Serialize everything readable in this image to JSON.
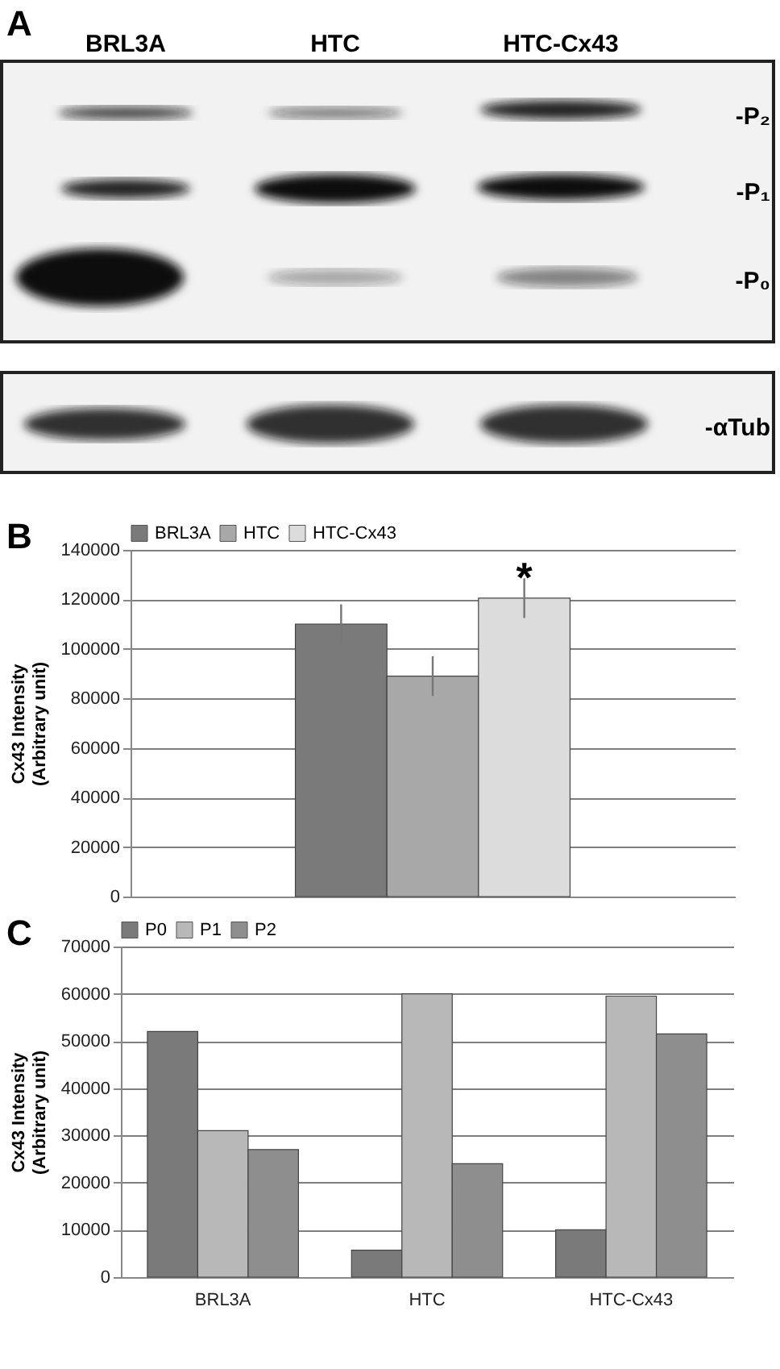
{
  "chart_data": [
    {
      "type": "other",
      "categories": [
        "BRL3A",
        "HTC",
        "HTC-Cx43"
      ],
      "annotations": [
        "A",
        "-P₂",
        "-P₁",
        "-P₀",
        "-αTub"
      ]
    },
    {
      "type": "bar",
      "ylabel": "Cx43 Intensity\n(Arbitrary unit)",
      "categories": [
        null
      ],
      "series": [
        {
          "name": "BRL3A",
          "color": "#7a7a7a",
          "values": [
            110000
          ],
          "errors": [
            8000
          ]
        },
        {
          "name": "HTC",
          "color": "#a8a8a8",
          "values": [
            89000
          ],
          "errors": [
            8000
          ]
        },
        {
          "name": "HTC-Cx43",
          "color": "#dcdcdc",
          "values": [
            120500
          ],
          "errors": [
            8000
          ]
        }
      ],
      "ylim": [
        0,
        140000
      ],
      "yticks": [
        0,
        20000,
        40000,
        60000,
        80000,
        100000,
        120000,
        140000
      ],
      "grid": "y",
      "legend": "top",
      "tick_labels": "y",
      "annotations": [
        "B",
        {
          "text": "*",
          "y": 131000
        }
      ]
    },
    {
      "type": "bar",
      "ylabel": "Cx43 Intensity\n(Arbitrary unit)",
      "categories": [
        "BRL3A",
        "HTC",
        "HTC-Cx43"
      ],
      "series": [
        {
          "name": "P0",
          "color": "#7a7a7a",
          "values": [
            52000,
            5700,
            10000
          ]
        },
        {
          "name": "P1",
          "color": "#b8b8b8",
          "values": [
            31000,
            60000,
            59500
          ]
        },
        {
          "name": "P2",
          "color": "#8e8e8e",
          "values": [
            27000,
            24000,
            51500
          ]
        }
      ],
      "ylim": [
        0,
        70000
      ],
      "yticks": [
        0,
        10000,
        20000,
        30000,
        40000,
        50000,
        60000,
        70000
      ],
      "grid": "y",
      "legend": "top",
      "annotations": [
        "C"
      ]
    }
  ]
}
